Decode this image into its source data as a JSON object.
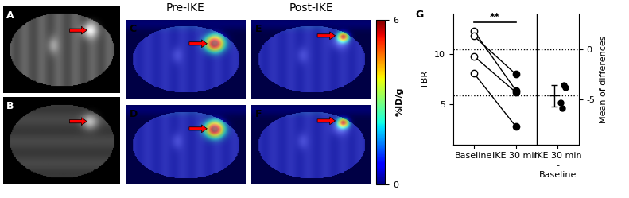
{
  "panels": {
    "labels": [
      "A",
      "B",
      "C",
      "D",
      "E",
      "F"
    ],
    "column_titles": [
      "Pre-IKE",
      "Post-IKE"
    ]
  },
  "colorbar": {
    "label": "%ID/g",
    "lim": [
      0,
      6
    ],
    "ticks": [
      0,
      6
    ]
  },
  "chart_data": {
    "type": "paired_scatter",
    "panel_label": "G",
    "categories": [
      "Baseline",
      "IKE 30 min",
      "IKE 30 min\n-\nBaseline"
    ],
    "ylabel": "TBR",
    "y2label": "Mean of differences",
    "ylim": [
      1,
      14
    ],
    "yticks": [
      5,
      10
    ],
    "y2lim": [
      -9.5,
      3.5
    ],
    "y2ticks": [
      -5,
      0
    ],
    "baseline": [
      12.3,
      11.8,
      9.8,
      8.1
    ],
    "ike_30_min": [
      6.4,
      8.0,
      6.2,
      2.8
    ],
    "differences": [
      -5.9,
      -3.8,
      -3.6,
      -5.3
    ],
    "mean_difference": -4.65,
    "difference_error": 1.1,
    "reference_lines": [
      0,
      -4.65
    ],
    "significance": {
      "label": "**",
      "between": [
        0,
        1
      ],
      "y": 13.2
    }
  }
}
